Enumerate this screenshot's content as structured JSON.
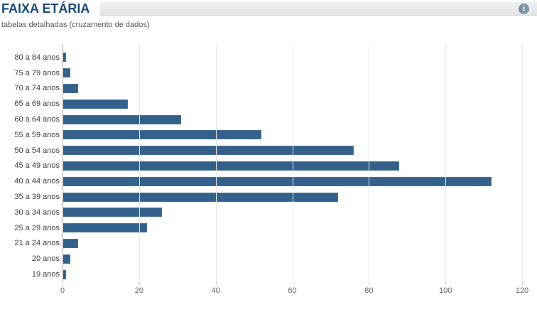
{
  "header": {
    "title": "FAIXA ETÁRIA",
    "info_glyph": "i"
  },
  "subtitle": "tabelas detalhadas (cruzamento de dados)",
  "colors": {
    "title": "#1a4a7a",
    "bar": "#33618c",
    "bar_border": "#46708f",
    "header_bar": "#e8e8e8",
    "grid": "#e7e7e7",
    "axis_line": "#a9a9a9",
    "y_label": "#3d3d3d",
    "x_tick_label": "#666666",
    "info_icon_bg": "#7e92a8"
  },
  "chart_data": {
    "type": "bar",
    "orientation": "horizontal",
    "title": "FAIXA ETÁRIA",
    "xlabel": "",
    "ylabel": "",
    "categories": [
      "80 a 84 anos",
      "75 a 79 anos",
      "70 a 74 anos",
      "65 a 69 anos",
      "60 a 64 anos",
      "55 a 59 anos",
      "50 a 54 anos",
      "45 a 49 anos",
      "40 a 44 anos",
      "35 a 39 anos",
      "30 a 34 anos",
      "25 a 29 anos",
      "21 a 24 anos",
      "20 anos",
      "19 anos"
    ],
    "values": [
      1,
      2,
      4,
      17,
      31,
      52,
      76,
      88,
      112,
      72,
      26,
      22,
      4,
      2,
      1
    ],
    "xlim": [
      0,
      120
    ],
    "xticks": [
      0,
      20,
      40,
      60,
      80,
      100,
      120
    ],
    "grid": true,
    "legend": false
  }
}
